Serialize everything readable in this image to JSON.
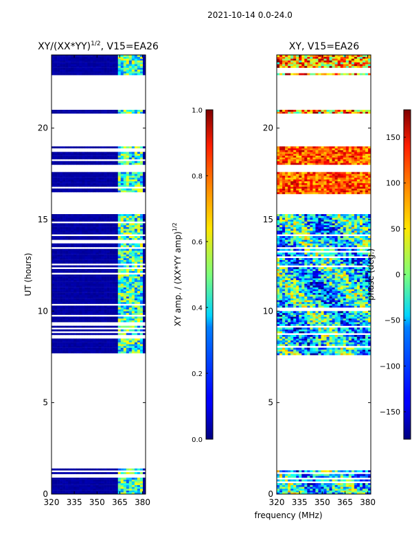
{
  "figure": {
    "suptitle": "2021-10-14 0.0-24.0",
    "shared_xlabel": "frequency (MHz)"
  },
  "chart_data": [
    {
      "type": "heatmap",
      "title": "XY/(XX*YY)$^{1/2}$, V15=EA26",
      "title_main": "XY/(XX*YY)",
      "title_sup": "1/2",
      "title_tail": ", V15=EA26",
      "xlabel": "",
      "ylabel": "UT (hours)",
      "xlim": [
        320,
        382
      ],
      "ylim": [
        0,
        24
      ],
      "xticks": [
        320,
        335,
        350,
        365,
        380
      ],
      "yticks": [
        0,
        5,
        10,
        15,
        20
      ],
      "data_hour_ranges": [
        [
          0,
          1.4
        ],
        [
          7.6,
          15.3
        ],
        [
          16.4,
          17.6
        ],
        [
          18.0,
          19.0
        ],
        [
          20.8,
          21.0
        ],
        [
          22.9,
          24.0
        ]
      ],
      "bright_band_mhz": [
        363,
        380
      ],
      "colorbar": {
        "label": "XY amp. / (XX*YY amp)$^{1/2}$",
        "label_main": "XY amp. / (XX*YY amp)",
        "label_sup": "1/2",
        "range": [
          0.0,
          1.0
        ],
        "ticks": [
          "0.0",
          "0.2",
          "0.4",
          "0.6",
          "0.8",
          "1.0"
        ],
        "colormap": "jet"
      }
    },
    {
      "type": "heatmap",
      "title": "XY, V15=EA26",
      "xlabel": "",
      "ylabel": "",
      "xlim": [
        320,
        382
      ],
      "ylim": [
        0,
        24
      ],
      "xticks": [
        320,
        335,
        350,
        365,
        380
      ],
      "yticks": [
        0,
        5,
        10,
        15,
        20
      ],
      "data_hour_ranges": [
        [
          0,
          1.4
        ],
        [
          7.6,
          15.3
        ],
        [
          16.4,
          17.6
        ],
        [
          18.0,
          19.0
        ],
        [
          20.8,
          21.0
        ],
        [
          22.9,
          24.0
        ]
      ],
      "colorbar": {
        "label": "phase (deg.)",
        "range": [
          -180,
          180
        ],
        "ticks": [
          "−150",
          "−100",
          "−50",
          "0",
          "50",
          "100",
          "150"
        ],
        "tick_values": [
          -150,
          -100,
          -50,
          0,
          50,
          100,
          150
        ],
        "colormap": "jet"
      }
    }
  ],
  "colors": {
    "background": "#ffffff",
    "axis": "#000000",
    "jet_low": "#00007f",
    "jet_high": "#7f0000"
  }
}
